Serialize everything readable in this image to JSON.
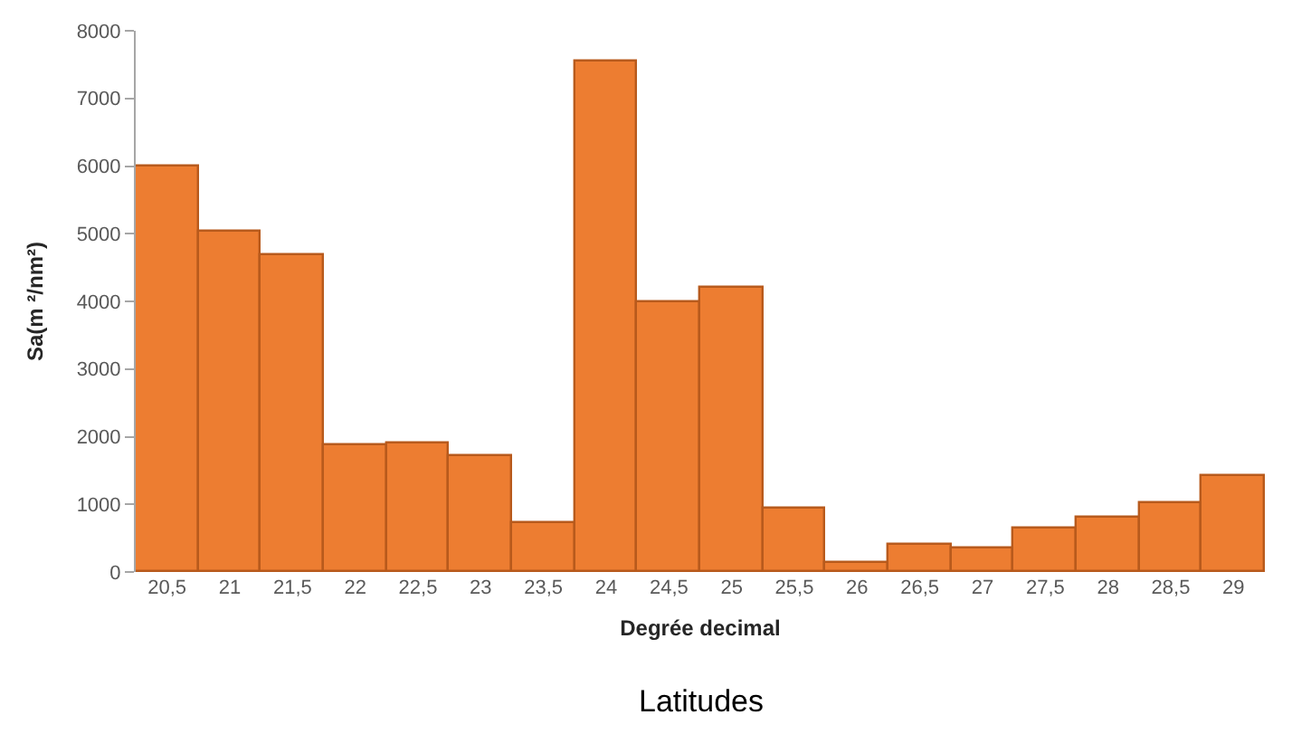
{
  "chart_data": {
    "type": "bar",
    "xlabel": "Degrée decimal",
    "ylabel": "Sa(m ²/nm²)",
    "categories": [
      "20,5",
      "21",
      "21,5",
      "22",
      "22,5",
      "23",
      "23,5",
      "24",
      "24,5",
      "25",
      "25,5",
      "26",
      "26,5",
      "27",
      "27,5",
      "28",
      "28,5",
      "29"
    ],
    "values": [
      6000,
      5020,
      4680,
      1870,
      1910,
      1720,
      730,
      7550,
      4000,
      4200,
      930,
      140,
      390,
      340,
      650,
      790,
      1030,
      1420
    ],
    "color": "#ed7d31",
    "ylim": [
      0,
      8000
    ],
    "yticks": [
      0,
      1000,
      2000,
      3000,
      4000,
      5000,
      6000,
      7000,
      8000
    ],
    "annotations": [
      "Latitudes"
    ]
  }
}
